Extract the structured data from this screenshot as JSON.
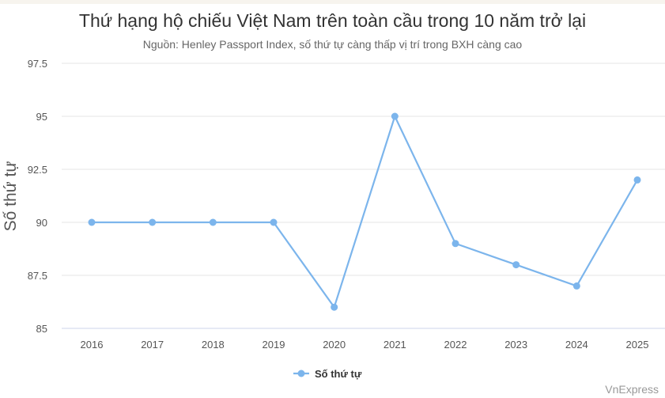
{
  "chart_data": {
    "type": "line",
    "title": "Thứ hạng hộ chiếu Việt Nam trên toàn cầu trong 10 năm trở lại",
    "subtitle": "Nguồn: Henley Passport Index, số thứ tự càng thấp vị trí trong BXH càng cao",
    "xlabel": "",
    "ylabel": "Số thứ tự",
    "categories": [
      "2016",
      "2017",
      "2018",
      "2019",
      "2020",
      "2021",
      "2022",
      "2023",
      "2024",
      "2025"
    ],
    "series": [
      {
        "name": "Số thứ tự",
        "values": [
          90,
          90,
          90,
          90,
          86,
          95,
          89,
          88,
          87,
          92
        ],
        "color": "#7cb5ec"
      }
    ],
    "ylim": [
      85,
      97.5
    ],
    "yticks": [
      "85",
      "87.5",
      "90",
      "92.5",
      "95",
      "97.5"
    ],
    "grid": true,
    "legend": "bottom-center"
  },
  "credit": "VnExpress"
}
